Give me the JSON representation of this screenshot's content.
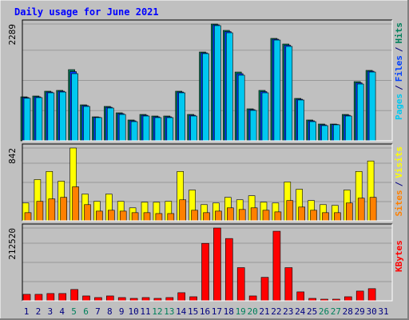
{
  "chart_data": [
    {
      "type": "bar",
      "title": "Daily usage for June 2021",
      "ylim": [
        0,
        2289
      ],
      "yticks": [
        2289
      ],
      "legend_separator": "/",
      "series": [
        {
          "name": "Hits",
          "color": "#00805C",
          "values": [
            862,
            878,
            972,
            988,
            1395,
            705,
            470,
            674,
            549,
            408,
            517,
            486,
            486,
            972,
            517,
            1740,
            2289,
            2164,
            1348,
            627,
            988,
            2007,
            1897,
            831,
            408,
            329,
            329,
            517,
            1160,
            1380,
            0
          ]
        },
        {
          "name": "Files",
          "color": "#0040FF",
          "values": [
            848,
            862,
            956,
            972,
            1356,
            690,
            462,
            658,
            533,
            392,
            501,
            470,
            470,
            956,
            501,
            1724,
            2273,
            2140,
            1317,
            611,
            964,
            1991,
            1873,
            815,
            392,
            313,
            321,
            501,
            1136,
            1364,
            0
          ]
        },
        {
          "name": "Pages",
          "color": "#00C8F0",
          "values": [
            834,
            847,
            941,
            956,
            1317,
            674,
            455,
            643,
            517,
            376,
            486,
            455,
            455,
            941,
            486,
            1709,
            2258,
            2117,
            1286,
            596,
            941,
            1975,
            1850,
            800,
            376,
            298,
            314,
            486,
            1113,
            1348,
            0
          ]
        }
      ]
    },
    {
      "type": "bar",
      "ylim": [
        0,
        842
      ],
      "yticks": [
        842
      ],
      "legend_separator": "/",
      "series": [
        {
          "name": "Visits",
          "color": "#FFFF00",
          "values": [
            206,
            477,
            571,
            458,
            842,
            309,
            225,
            309,
            225,
            150,
            215,
            215,
            225,
            571,
            356,
            187,
            206,
            271,
            243,
            290,
            215,
            206,
            449,
            365,
            234,
            187,
            178,
            356,
            571,
            692,
            0
          ]
        },
        {
          "name": "Sites",
          "color": "#FF8000",
          "values": [
            94,
            225,
            253,
            271,
            393,
            187,
            112,
            122,
            112,
            94,
            94,
            84,
            84,
            243,
            122,
            94,
            112,
            150,
            131,
            150,
            122,
            103,
            234,
            159,
            122,
            94,
            94,
            206,
            262,
            271,
            0
          ]
        }
      ]
    },
    {
      "type": "bar",
      "ylim": [
        0,
        212520
      ],
      "yticks": [
        212520
      ],
      "categories": [
        "1",
        "2",
        "3",
        "4",
        "5",
        "6",
        "7",
        "8",
        "9",
        "10",
        "11",
        "12",
        "13",
        "14",
        "15",
        "16",
        "17",
        "18",
        "19",
        "20",
        "21",
        "22",
        "23",
        "24",
        "25",
        "26",
        "27",
        "28",
        "29",
        "30",
        "31"
      ],
      "category_colors": [
        "#000080",
        "#000080",
        "#000080",
        "#000080",
        "#00805C",
        "#00805C",
        "#000080",
        "#000080",
        "#000080",
        "#000080",
        "#000080",
        "#00805C",
        "#00805C",
        "#000080",
        "#000080",
        "#000080",
        "#000080",
        "#000080",
        "#00805C",
        "#00805C",
        "#000080",
        "#000080",
        "#000080",
        "#000080",
        "#000080",
        "#00805C",
        "#00805C",
        "#000080",
        "#000080",
        "#000080",
        "#000080"
      ],
      "series": [
        {
          "name": "KBytes",
          "color": "#FF0000",
          "values": [
            18890,
            18890,
            21250,
            21250,
            33060,
            14170,
            9450,
            14170,
            9450,
            7080,
            9450,
            7080,
            9450,
            23610,
            11810,
            167650,
            212520,
            181820,
            96810,
            14170,
            68480,
            203070,
            96810,
            25970,
            7080,
            4720,
            4720,
            11810,
            28340,
            35420,
            0
          ]
        }
      ]
    }
  ]
}
